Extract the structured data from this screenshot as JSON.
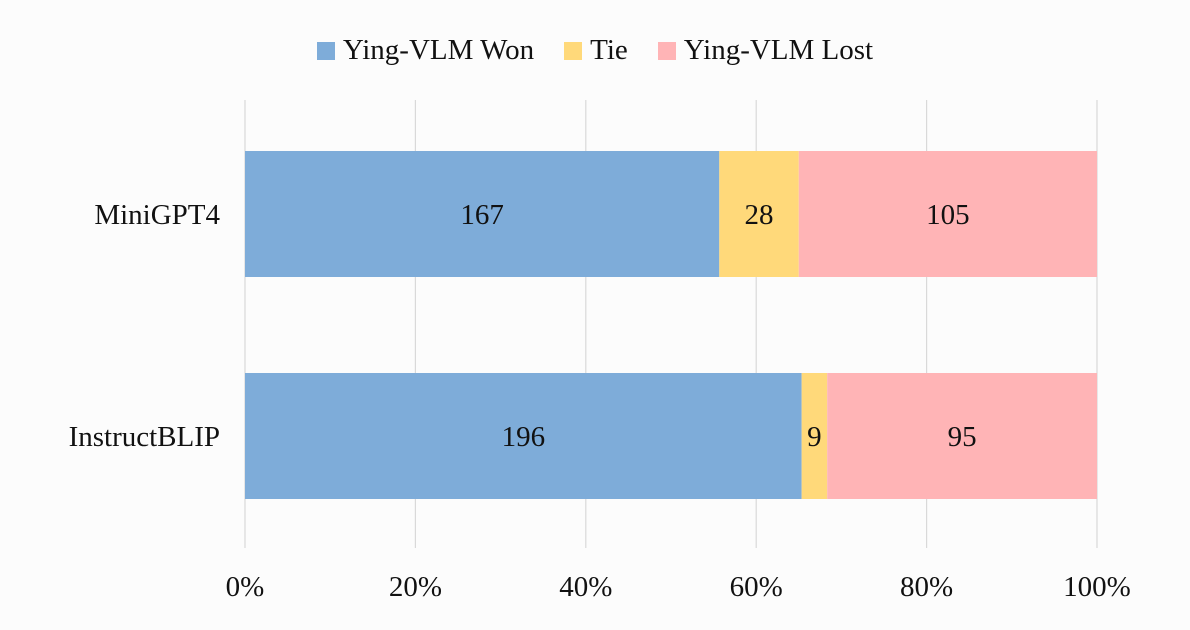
{
  "chart_data": {
    "type": "bar",
    "orientation": "horizontal",
    "stacked": "percent",
    "title": "",
    "xlabel": "",
    "ylabel": "",
    "categories": [
      "MiniGPT4",
      "InstructBLIP"
    ],
    "series": [
      {
        "name": "Ying-VLM Won",
        "values": [
          167,
          196
        ],
        "color": "#7eacd9"
      },
      {
        "name": "Tie",
        "values": [
          28,
          9
        ],
        "color": "#ffd97a"
      },
      {
        "name": "Ying-VLM Lost",
        "values": [
          105,
          95
        ],
        "color": "#ffb4b6"
      }
    ],
    "xlim": [
      0,
      100
    ],
    "xticks": [
      "0%",
      "20%",
      "40%",
      "60%",
      "80%",
      "100%"
    ],
    "grid": "vertical",
    "legend": "top-center",
    "data_labels": true
  }
}
